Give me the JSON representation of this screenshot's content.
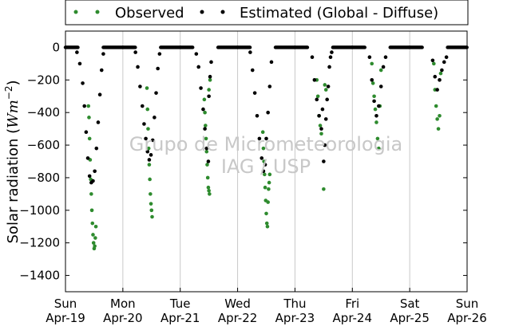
{
  "chart_data": {
    "type": "scatter",
    "title": "",
    "xlabel": "",
    "ylabel": "Solar radiation (Wm⁻²)",
    "ylabel_parts": {
      "text": "Solar radiation (",
      "unit_w": "Wm",
      "unit_exp": "−2",
      "close": ")"
    },
    "ylim": [
      -1500,
      100
    ],
    "xlim": [
      0,
      7
    ],
    "grid": "vertical only",
    "legend_position": "top (above plot)",
    "yticks": [
      0,
      -200,
      -400,
      -600,
      -800,
      -1000,
      -1200,
      -1400
    ],
    "xticks": [
      {
        "day": "Sun",
        "date": "Apr-19",
        "x": 0
      },
      {
        "day": "Mon",
        "date": "Apr-20",
        "x": 1
      },
      {
        "day": "Tue",
        "date": "Apr-21",
        "x": 2
      },
      {
        "day": "Wed",
        "date": "Apr-22",
        "x": 3
      },
      {
        "day": "Thu",
        "date": "Apr-23",
        "x": 4
      },
      {
        "day": "Fri",
        "date": "Apr-24",
        "x": 5
      },
      {
        "day": "Sat",
        "date": "Apr-25",
        "x": 6
      },
      {
        "day": "Sun",
        "date": "Apr-26",
        "x": 7
      }
    ],
    "series": [
      {
        "name": "Observed",
        "color": "#2e8b2e",
        "values": [
          [
            0.4,
            -360
          ],
          [
            0.41,
            -430
          ],
          [
            0.42,
            -560
          ],
          [
            0.43,
            -690
          ],
          [
            0.44,
            -810
          ],
          [
            0.45,
            -900
          ],
          [
            0.46,
            -1000
          ],
          [
            0.47,
            -1080
          ],
          [
            0.48,
            -1150
          ],
          [
            0.49,
            -1200
          ],
          [
            0.5,
            -1235
          ],
          [
            0.51,
            -1220
          ],
          [
            0.52,
            -1170
          ],
          [
            0.53,
            -1100
          ],
          [
            1.42,
            -250
          ],
          [
            1.43,
            -380
          ],
          [
            1.44,
            -500
          ],
          [
            1.45,
            -620
          ],
          [
            1.46,
            -720
          ],
          [
            1.47,
            -810
          ],
          [
            1.48,
            -900
          ],
          [
            1.49,
            -960
          ],
          [
            1.5,
            -1000
          ],
          [
            1.51,
            -1040
          ],
          [
            2.42,
            -320
          ],
          [
            2.43,
            -400
          ],
          [
            2.44,
            -480
          ],
          [
            2.45,
            -560
          ],
          [
            2.46,
            -640
          ],
          [
            2.47,
            -720
          ],
          [
            2.48,
            -800
          ],
          [
            2.49,
            -860
          ],
          [
            2.5,
            -880
          ],
          [
            2.51,
            -900
          ],
          [
            2.5,
            -260
          ],
          [
            2.52,
            -200
          ],
          [
            3.44,
            -520
          ],
          [
            3.45,
            -620
          ],
          [
            3.46,
            -700
          ],
          [
            3.47,
            -780
          ],
          [
            3.48,
            -860
          ],
          [
            3.49,
            -940
          ],
          [
            3.5,
            -1020
          ],
          [
            3.51,
            -1080
          ],
          [
            3.52,
            -1100
          ],
          [
            3.53,
            -950
          ],
          [
            3.54,
            -870
          ],
          [
            3.55,
            -830
          ],
          [
            3.56,
            -780
          ],
          [
            4.38,
            -200
          ],
          [
            4.4,
            -300
          ],
          [
            4.42,
            -420
          ],
          [
            4.44,
            -480
          ],
          [
            4.46,
            -530
          ],
          [
            4.5,
            -870
          ],
          [
            4.52,
            -230
          ],
          [
            4.54,
            -260
          ],
          [
            5.34,
            -100
          ],
          [
            5.36,
            -220
          ],
          [
            5.38,
            -300
          ],
          [
            5.4,
            -380
          ],
          [
            5.42,
            -460
          ],
          [
            5.44,
            -560
          ],
          [
            5.46,
            -620
          ],
          [
            5.48,
            -360
          ],
          [
            5.5,
            -140
          ],
          [
            6.42,
            -100
          ],
          [
            6.44,
            -260
          ],
          [
            6.46,
            -360
          ],
          [
            6.48,
            -440
          ],
          [
            6.5,
            -500
          ],
          [
            6.52,
            -420
          ],
          [
            6.54,
            -160
          ]
        ]
      },
      {
        "name": "Estimated (Global - Diffuse)",
        "color": "#000000",
        "values": [
          [
            0.2,
            -30
          ],
          [
            0.25,
            -100
          ],
          [
            0.3,
            -220
          ],
          [
            0.33,
            -360
          ],
          [
            0.36,
            -520
          ],
          [
            0.39,
            -680
          ],
          [
            0.42,
            -790
          ],
          [
            0.45,
            -830
          ],
          [
            0.48,
            -820
          ],
          [
            0.51,
            -760
          ],
          [
            0.54,
            -620
          ],
          [
            0.57,
            -460
          ],
          [
            0.6,
            -290
          ],
          [
            0.63,
            -140
          ],
          [
            0.66,
            -40
          ],
          [
            1.22,
            -30
          ],
          [
            1.26,
            -120
          ],
          [
            1.3,
            -240
          ],
          [
            1.34,
            -360
          ],
          [
            1.37,
            -470
          ],
          [
            1.4,
            -560
          ],
          [
            1.43,
            -640
          ],
          [
            1.46,
            -690
          ],
          [
            1.49,
            -660
          ],
          [
            1.52,
            -570
          ],
          [
            1.55,
            -430
          ],
          [
            1.58,
            -280
          ],
          [
            1.61,
            -130
          ],
          [
            1.64,
            -40
          ],
          [
            2.28,
            -40
          ],
          [
            2.32,
            -120
          ],
          [
            2.36,
            -250
          ],
          [
            2.4,
            -380
          ],
          [
            2.43,
            -500
          ],
          [
            2.46,
            -620
          ],
          [
            2.49,
            -700
          ],
          [
            2.5,
            -300
          ],
          [
            2.52,
            -180
          ],
          [
            2.54,
            -90
          ],
          [
            3.22,
            -30
          ],
          [
            3.26,
            -140
          ],
          [
            3.3,
            -280
          ],
          [
            3.34,
            -420
          ],
          [
            3.38,
            -560
          ],
          [
            3.42,
            -680
          ],
          [
            3.45,
            -760
          ],
          [
            3.48,
            -720
          ],
          [
            3.5,
            -560
          ],
          [
            3.53,
            -400
          ],
          [
            3.56,
            -240
          ],
          [
            3.59,
            -90
          ],
          [
            4.3,
            -60
          ],
          [
            4.34,
            -200
          ],
          [
            4.38,
            -320
          ],
          [
            4.42,
            -420
          ],
          [
            4.46,
            -500
          ],
          [
            4.48,
            -380
          ],
          [
            4.5,
            -700
          ],
          [
            4.52,
            -600
          ],
          [
            4.54,
            -440
          ],
          [
            4.56,
            -320
          ],
          [
            4.58,
            -240
          ],
          [
            4.6,
            -120
          ],
          [
            4.62,
            -60
          ],
          [
            4.64,
            -30
          ],
          [
            5.3,
            -60
          ],
          [
            5.34,
            -200
          ],
          [
            5.38,
            -330
          ],
          [
            5.42,
            -420
          ],
          [
            5.46,
            -360
          ],
          [
            5.5,
            -240
          ],
          [
            5.54,
            -120
          ],
          [
            5.58,
            -60
          ],
          [
            6.4,
            -80
          ],
          [
            6.44,
            -180
          ],
          [
            6.48,
            -260
          ],
          [
            6.52,
            -200
          ],
          [
            6.56,
            -140
          ],
          [
            6.6,
            -90
          ],
          [
            6.64,
            -60
          ]
        ]
      }
    ]
  },
  "watermark": {
    "line1": "Grupo de Micrometeorologia",
    "line2": "IAG / USP"
  },
  "legend": {
    "observed_label": "Observed",
    "estimated_label": "Estimated (Global - Diffuse)"
  }
}
